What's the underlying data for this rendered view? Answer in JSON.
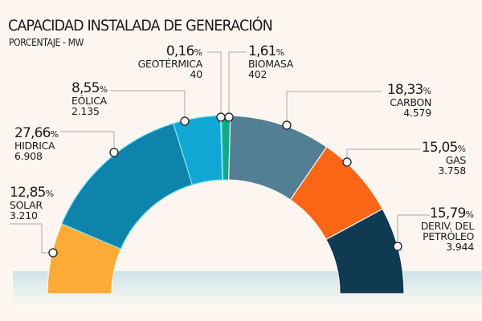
{
  "header": {
    "title": "CAPACIDAD INSTALADA DE GENERACIÓN",
    "subtitle": "PORCENTAJE -  MW"
  },
  "chart_data": {
    "type": "pie",
    "variant": "half-donut",
    "title": "CAPACIDAD INSTALADA DE GENERACIÓN",
    "subtitle": "PORCENTAJE -  MW",
    "order": "left-to-right",
    "slices": [
      {
        "label": "SOLAR",
        "percent": 12.85,
        "percent_text": "12,85",
        "mw": 3210,
        "mw_text": "3.210",
        "color": "#fdab37"
      },
      {
        "label": "HIDRICA",
        "percent": 27.66,
        "percent_text": "27,66",
        "mw": 6908,
        "mw_text": "6.908",
        "color": "#0e84ad"
      },
      {
        "label": "EÓLICA",
        "percent": 8.55,
        "percent_text": "8,55",
        "mw": 2135,
        "mw_text": "2.135",
        "color": "#11a7d5"
      },
      {
        "label": "GEOTÉRMICA",
        "percent": 0.16,
        "percent_text": "0,16",
        "mw": 40,
        "mw_text": "40",
        "color": "#11a98e"
      },
      {
        "label": "BIOMASA",
        "percent": 1.61,
        "percent_text": "1,61",
        "mw": 402,
        "mw_text": "402",
        "color": "#11a98e"
      },
      {
        "label": "CARBON",
        "percent": 18.33,
        "percent_text": "18,33",
        "mw": 4579,
        "mw_text": "4.579",
        "color": "#527f93"
      },
      {
        "label": "GAS",
        "percent": 15.05,
        "percent_text": "15,05",
        "mw": 3758,
        "mw_text": "3.758",
        "color": "#fb6516"
      },
      {
        "label": "DERIV. DEL PETRÓLEO",
        "label_lines": [
          "DERIV. DEL",
          "PETRÓLEO"
        ],
        "percent": 15.79,
        "percent_text": "15,79",
        "mw": 3944,
        "mw_text": "3.944",
        "color": "#0f3a52"
      }
    ],
    "percent_symbol": "%"
  }
}
